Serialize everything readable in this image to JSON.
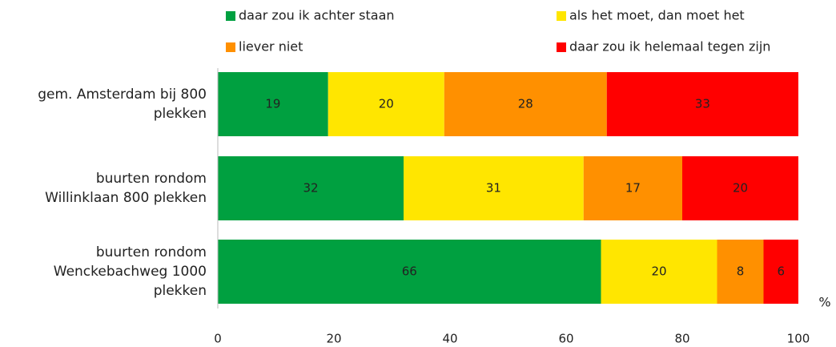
{
  "chart_data": {
    "type": "stacked-bar-horizontal",
    "categories": [
      "gem. Amsterdam bij 800\nplekken",
      "buurten rondom\nWillinklaan 800 plekken",
      "buurten rondom\nWenckebachweg 1000\nplekken"
    ],
    "series": [
      {
        "name": "daar zou ik achter staan",
        "color": "#00a040",
        "values": [
          19,
          32,
          66
        ]
      },
      {
        "name": "als het moet, dan moet het",
        "color": "#ffe600",
        "values": [
          20,
          31,
          20
        ]
      },
      {
        "name": "liever niet",
        "color": "#ff9000",
        "values": [
          28,
          17,
          8
        ]
      },
      {
        "name": "daar zou ik helemaal tegen zijn",
        "color": "#ff0000",
        "values": [
          33,
          20,
          6
        ]
      }
    ],
    "xlim": [
      0,
      100
    ],
    "xticks": [
      0,
      20,
      40,
      60,
      80,
      100
    ],
    "x_unit": "%",
    "grid": false,
    "legend": "top"
  }
}
